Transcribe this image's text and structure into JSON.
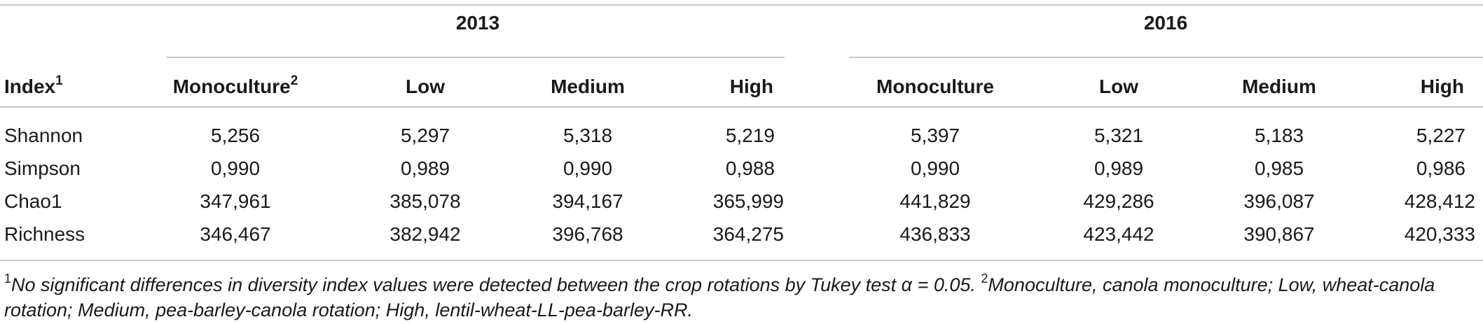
{
  "table": {
    "groups": [
      "2013",
      "2016"
    ],
    "index_header": "Index",
    "index_header_sup": "1",
    "columns_2013": [
      "Monoculture",
      "Low",
      "Medium",
      "High"
    ],
    "monoculture_2013_sup": "2",
    "columns_2016": [
      "Monoculture",
      "Low",
      "Medium",
      "High"
    ],
    "rows": [
      {
        "index": "Shannon",
        "values": [
          "5,256",
          "5,297",
          "5,318",
          "5,219",
          "5,397",
          "5,321",
          "5,183",
          "5,227"
        ]
      },
      {
        "index": "Simpson",
        "values": [
          "0,990",
          "0,989",
          "0,990",
          "0,988",
          "0,990",
          "0,989",
          "0,985",
          "0,986"
        ]
      },
      {
        "index": "Chao1",
        "values": [
          "347,961",
          "385,078",
          "394,167",
          "365,999",
          "441,829",
          "429,286",
          "396,087",
          "428,412"
        ]
      },
      {
        "index": "Richness",
        "values": [
          "346,467",
          "382,942",
          "396,768",
          "364,275",
          "436,833",
          "423,442",
          "390,867",
          "420,333"
        ]
      }
    ]
  },
  "footnote": {
    "mark1": "1",
    "text1": "No significant differences in diversity index values were detected between the crop rotations by Tukey test α = 0.05. ",
    "mark2": "2",
    "text2": "Monoculture, canola monoculture; Low, wheat-canola rotation; Medium, pea-barley-canola rotation; High, lentil-wheat-LL-pea-barley-RR."
  }
}
